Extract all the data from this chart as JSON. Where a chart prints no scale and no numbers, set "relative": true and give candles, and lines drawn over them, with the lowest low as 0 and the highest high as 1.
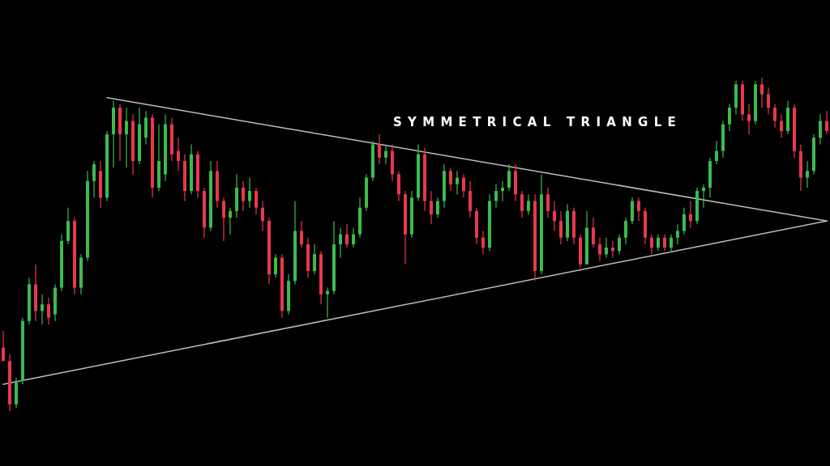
{
  "chart_data": {
    "type": "candlestick",
    "title": "SYMMETRICAL TRIANGLE",
    "relative": true,
    "categories": [
      null,
      null,
      null,
      null,
      null,
      null,
      null,
      null,
      null,
      null,
      null,
      null,
      null,
      null,
      null,
      null,
      null,
      null,
      null,
      null,
      null,
      null,
      null,
      null,
      null,
      null,
      null,
      null,
      null,
      null,
      null,
      null,
      null,
      null,
      null,
      null,
      null,
      null,
      null,
      null,
      null,
      null,
      null,
      null,
      null,
      null,
      null,
      null,
      null,
      null,
      null,
      null,
      null,
      null,
      null,
      null,
      null,
      null,
      null,
      null,
      null,
      null,
      null,
      null,
      null,
      null,
      null,
      null,
      null,
      null,
      null,
      null,
      null,
      null,
      null,
      null,
      null,
      null,
      null,
      null,
      null,
      null,
      null,
      null,
      null,
      null,
      null,
      null,
      null,
      null,
      null,
      null,
      null,
      null,
      null,
      null,
      null,
      null,
      null,
      null,
      null,
      null,
      null,
      null,
      null,
      null,
      null,
      null,
      null,
      null,
      null,
      null,
      null,
      null,
      null,
      null,
      null,
      null,
      null,
      null,
      null,
      null,
      null,
      null,
      null,
      null,
      null,
      null
    ],
    "ohlc": [
      [
        0.19,
        0.24,
        0.15,
        0.15
      ],
      [
        0.15,
        0.17,
        0,
        0.02
      ],
      [
        0.02,
        0.1,
        0.01,
        0.09
      ],
      [
        0.09,
        0.28,
        0.08,
        0.27
      ],
      [
        0.27,
        0.4,
        0.26,
        0.38
      ],
      [
        0.38,
        0.44,
        0.27,
        0.3
      ],
      [
        0.3,
        0.35,
        0.26,
        0.32
      ],
      [
        0.32,
        0.34,
        0.26,
        0.28
      ],
      [
        0.29,
        0.38,
        0.27,
        0.37
      ],
      [
        0.37,
        0.53,
        0.36,
        0.51
      ],
      [
        0.51,
        0.61,
        0.5,
        0.57
      ],
      [
        0.57,
        0.58,
        0.35,
        0.37
      ],
      [
        0.37,
        0.47,
        0.35,
        0.46
      ],
      [
        0.46,
        0.72,
        0.45,
        0.69
      ],
      [
        0.69,
        0.75,
        0.64,
        0.74
      ],
      [
        0.72,
        0.75,
        0.61,
        0.64
      ],
      [
        0.64,
        0.84,
        0.63,
        0.83
      ],
      [
        0.83,
        0.93,
        0.73,
        0.91
      ],
      [
        0.91,
        0.92,
        0.75,
        0.83
      ],
      [
        0.83,
        0.91,
        0.73,
        0.87
      ],
      [
        0.87,
        0.89,
        0.71,
        0.75
      ],
      [
        0.75,
        0.91,
        0.74,
        0.86
      ],
      [
        0.82,
        0.9,
        0.8,
        0.88
      ],
      [
        0.88,
        0.89,
        0.64,
        0.67
      ],
      [
        0.67,
        0.86,
        0.66,
        0.75
      ],
      [
        0.71,
        0.89,
        0.69,
        0.86
      ],
      [
        0.86,
        0.88,
        0.75,
        0.77
      ],
      [
        0.78,
        0.82,
        0.72,
        0.75
      ],
      [
        0.75,
        0.77,
        0.63,
        0.66
      ],
      [
        0.66,
        0.8,
        0.65,
        0.77
      ],
      [
        0.77,
        0.78,
        0.64,
        0.66
      ],
      [
        0.66,
        0.67,
        0.52,
        0.55
      ],
      [
        0.55,
        0.75,
        0.54,
        0.72
      ],
      [
        0.72,
        0.75,
        0.61,
        0.63
      ],
      [
        0.63,
        0.64,
        0.51,
        0.58
      ],
      [
        0.58,
        0.61,
        0.53,
        0.6
      ],
      [
        0.6,
        0.71,
        0.58,
        0.67
      ],
      [
        0.67,
        0.69,
        0.6,
        0.63
      ],
      [
        0.63,
        0.7,
        0.61,
        0.66
      ],
      [
        0.66,
        0.67,
        0.59,
        0.61
      ],
      [
        0.61,
        0.63,
        0.54,
        0.57
      ],
      [
        0.57,
        0.58,
        0.38,
        0.41
      ],
      [
        0.41,
        0.47,
        0.4,
        0.46
      ],
      [
        0.46,
        0.47,
        0.28,
        0.3
      ],
      [
        0.3,
        0.41,
        0.29,
        0.39
      ],
      [
        0.39,
        0.63,
        0.38,
        0.54
      ],
      [
        0.54,
        0.57,
        0.49,
        0.5
      ],
      [
        0.5,
        0.52,
        0.4,
        0.42
      ],
      [
        0.42,
        0.5,
        0.41,
        0.47
      ],
      [
        0.47,
        0.48,
        0.32,
        0.35
      ],
      [
        0.35,
        0.37,
        0.28,
        0.36
      ],
      [
        0.36,
        0.57,
        0.35,
        0.5
      ],
      [
        0.5,
        0.55,
        0.46,
        0.53
      ],
      [
        0.53,
        0.56,
        0.49,
        0.5
      ],
      [
        0.5,
        0.55,
        0.49,
        0.53
      ],
      [
        0.53,
        0.64,
        0.52,
        0.61
      ],
      [
        0.61,
        0.71,
        0.6,
        0.7
      ],
      [
        0.7,
        0.81,
        0.69,
        0.8
      ],
      [
        0.8,
        0.83,
        0.74,
        0.76
      ],
      [
        0.76,
        0.8,
        0.74,
        0.78
      ],
      [
        0.78,
        0.8,
        0.69,
        0.71
      ],
      [
        0.71,
        0.72,
        0.63,
        0.65
      ],
      [
        0.65,
        0.66,
        0.44,
        0.53
      ],
      [
        0.53,
        0.66,
        0.52,
        0.64
      ],
      [
        0.64,
        0.8,
        0.63,
        0.77
      ],
      [
        0.77,
        0.79,
        0.6,
        0.63
      ],
      [
        0.63,
        0.66,
        0.56,
        0.59
      ],
      [
        0.59,
        0.64,
        0.58,
        0.63
      ],
      [
        0.63,
        0.74,
        0.61,
        0.72
      ],
      [
        0.72,
        0.73,
        0.66,
        0.68
      ],
      [
        0.68,
        0.72,
        0.65,
        0.7
      ],
      [
        0.7,
        0.71,
        0.64,
        0.66
      ],
      [
        0.66,
        0.69,
        0.58,
        0.6
      ],
      [
        0.6,
        0.61,
        0.5,
        0.52
      ],
      [
        0.52,
        0.54,
        0.47,
        0.49
      ],
      [
        0.49,
        0.65,
        0.48,
        0.63
      ],
      [
        0.63,
        0.68,
        0.61,
        0.66
      ],
      [
        0.66,
        0.69,
        0.63,
        0.67
      ],
      [
        0.67,
        0.74,
        0.66,
        0.72
      ],
      [
        0.72,
        0.74,
        0.63,
        0.65
      ],
      [
        0.65,
        0.66,
        0.58,
        0.6
      ],
      [
        0.6,
        0.65,
        0.59,
        0.63
      ],
      [
        0.63,
        0.65,
        0.39,
        0.42
      ],
      [
        0.42,
        0.71,
        0.41,
        0.65
      ],
      [
        0.65,
        0.67,
        0.58,
        0.6
      ],
      [
        0.6,
        0.63,
        0.54,
        0.57
      ],
      [
        0.57,
        0.6,
        0.5,
        0.52
      ],
      [
        0.52,
        0.62,
        0.51,
        0.6
      ],
      [
        0.6,
        0.61,
        0.5,
        0.52
      ],
      [
        0.52,
        0.53,
        0.43,
        0.44
      ],
      [
        0.44,
        0.6,
        0.44,
        0.55
      ],
      [
        0.55,
        0.58,
        0.49,
        0.5
      ],
      [
        0.5,
        0.52,
        0.45,
        0.47
      ],
      [
        0.47,
        0.52,
        0.46,
        0.49
      ],
      [
        0.49,
        0.51,
        0.46,
        0.48
      ],
      [
        0.48,
        0.53,
        0.47,
        0.52
      ],
      [
        0.52,
        0.58,
        0.5,
        0.57
      ],
      [
        0.57,
        0.64,
        0.56,
        0.63
      ],
      [
        0.63,
        0.64,
        0.57,
        0.6
      ],
      [
        0.6,
        0.61,
        0.5,
        0.52
      ],
      [
        0.52,
        0.53,
        0.47,
        0.49
      ],
      [
        0.49,
        0.53,
        0.48,
        0.52
      ],
      [
        0.52,
        0.53,
        0.48,
        0.49
      ],
      [
        0.49,
        0.53,
        0.48,
        0.52
      ],
      [
        0.52,
        0.56,
        0.5,
        0.54
      ],
      [
        0.54,
        0.61,
        0.53,
        0.59
      ],
      [
        0.59,
        0.63,
        0.55,
        0.57
      ],
      [
        0.57,
        0.67,
        0.56,
        0.66
      ],
      [
        0.66,
        0.68,
        0.61,
        0.67
      ],
      [
        0.67,
        0.76,
        0.64,
        0.75
      ],
      [
        0.75,
        0.81,
        0.74,
        0.78
      ],
      [
        0.78,
        0.87,
        0.76,
        0.86
      ],
      [
        0.86,
        0.92,
        0.84,
        0.91
      ],
      [
        0.91,
        0.99,
        0.89,
        0.98
      ],
      [
        0.98,
        0.99,
        0.87,
        0.89
      ],
      [
        0.89,
        0.92,
        0.83,
        0.87
      ],
      [
        0.87,
        0.99,
        0.86,
        0.98
      ],
      [
        0.98,
        1,
        0.91,
        0.95
      ],
      [
        0.95,
        0.97,
        0.89,
        0.91
      ],
      [
        0.91,
        0.92,
        0.85,
        0.87
      ],
      [
        0.87,
        0.89,
        0.82,
        0.84
      ],
      [
        0.84,
        0.93,
        0.83,
        0.91
      ],
      [
        0.91,
        0.92,
        0.76,
        0.78
      ],
      [
        0.78,
        0.8,
        0.66,
        0.7
      ],
      [
        0.7,
        0.75,
        0.67,
        0.72
      ],
      [
        0.72,
        0.83,
        0.71,
        0.82
      ],
      [
        0.82,
        0.89,
        0.8,
        0.87
      ],
      [
        0.87,
        0.9,
        0.83,
        0.84
      ]
    ],
    "colors": [
      "#e9384b",
      "#e9384b",
      "#3dba4e",
      "#3dba4e",
      "#3dba4e",
      "#e9384b",
      "#3dba4e",
      "#e9384b",
      "#3dba4e",
      "#3dba4e",
      "#3dba4e",
      "#e9384b",
      "#3dba4e",
      "#3dba4e",
      "#3dba4e",
      "#e9384b",
      "#3dba4e",
      "#3dba4e",
      "#e9384b",
      "#3dba4e",
      "#e9384b",
      "#3dba4e",
      "#3dba4e",
      "#e9384b",
      "#3dba4e",
      "#3dba4e",
      "#e9384b",
      "#e9384b",
      "#e9384b",
      "#3dba4e",
      "#e9384b",
      "#e9384b",
      "#3dba4e",
      "#e9384b",
      "#e9384b",
      "#3dba4e",
      "#3dba4e",
      "#e9384b",
      "#3dba4e",
      "#e9384b",
      "#e9384b",
      "#e9384b",
      "#3dba4e",
      "#e9384b",
      "#3dba4e",
      "#3dba4e",
      "#e9384b",
      "#e9384b",
      "#3dba4e",
      "#e9384b",
      "#3dba4e",
      "#3dba4e",
      "#3dba4e",
      "#e9384b",
      "#3dba4e",
      "#3dba4e",
      "#3dba4e",
      "#3dba4e",
      "#e9384b",
      "#3dba4e",
      "#e9384b",
      "#e9384b",
      "#e9384b",
      "#3dba4e",
      "#3dba4e",
      "#e9384b",
      "#e9384b",
      "#3dba4e",
      "#3dba4e",
      "#e9384b",
      "#3dba4e",
      "#e9384b",
      "#e9384b",
      "#e9384b",
      "#e9384b",
      "#3dba4e",
      "#3dba4e",
      "#3dba4e",
      "#3dba4e",
      "#e9384b",
      "#e9384b",
      "#3dba4e",
      "#e9384b",
      "#3dba4e",
      "#e9384b",
      "#e9384b",
      "#e9384b",
      "#3dba4e",
      "#e9384b",
      "#e9384b",
      "#3dba4e",
      "#e9384b",
      "#e9384b",
      "#3dba4e",
      "#e9384b",
      "#3dba4e",
      "#3dba4e",
      "#3dba4e",
      "#e9384b",
      "#e9384b",
      "#e9384b",
      "#3dba4e",
      "#e9384b",
      "#3dba4e",
      "#3dba4e",
      "#3dba4e",
      "#e9384b",
      "#3dba4e",
      "#3dba4e",
      "#3dba4e",
      "#3dba4e",
      "#3dba4e",
      "#3dba4e",
      "#3dba4e",
      "#e9384b",
      "#e9384b",
      "#3dba4e",
      "#e9384b",
      "#e9384b",
      "#e9384b",
      "#e9384b",
      "#3dba4e",
      "#e9384b",
      "#e9384b",
      "#3dba4e",
      "#3dba4e",
      "#3dba4e",
      "#e9384b"
    ],
    "series": [
      {
        "type": "line",
        "color": "#bdbdbd",
        "values": [
          0.08,
          null,
          null,
          null,
          null,
          null,
          null,
          null,
          null,
          null,
          null,
          null,
          null,
          null,
          null,
          null,
          null,
          null,
          null,
          null,
          null,
          null,
          null,
          null,
          null,
          null,
          null,
          null,
          null,
          null,
          null,
          null,
          null,
          null,
          null,
          null,
          null,
          null,
          null,
          null,
          null,
          null,
          null,
          null,
          null,
          null,
          null,
          null,
          null,
          null,
          null,
          null,
          null,
          null,
          null,
          null,
          null,
          null,
          null,
          null,
          null,
          null,
          null,
          null,
          null,
          null,
          null,
          null,
          null,
          null,
          null,
          null,
          null,
          null,
          null,
          null,
          null,
          null,
          null,
          null,
          null,
          null,
          null,
          null,
          null,
          null,
          null,
          null,
          null,
          null,
          null,
          null,
          null,
          null,
          null,
          null,
          null,
          null,
          null,
          null,
          null,
          null,
          null,
          null,
          null,
          null,
          null,
          null,
          null,
          null,
          null,
          null,
          null,
          null,
          null,
          null,
          null,
          null,
          null,
          null,
          null,
          null,
          null,
          null,
          null,
          null,
          null,
          0.57
        ]
      },
      {
        "type": "line",
        "color": "#bdbdbd",
        "values": [
          null,
          null,
          null,
          null,
          null,
          null,
          null,
          null,
          null,
          null,
          null,
          null,
          null,
          null,
          null,
          null,
          0.94,
          null,
          null,
          null,
          null,
          null,
          null,
          null,
          null,
          null,
          null,
          null,
          null,
          null,
          null,
          null,
          null,
          null,
          null,
          null,
          null,
          null,
          null,
          null,
          null,
          null,
          null,
          null,
          null,
          null,
          null,
          null,
          null,
          null,
          null,
          null,
          null,
          null,
          null,
          null,
          null,
          null,
          null,
          null,
          null,
          null,
          null,
          null,
          null,
          null,
          null,
          null,
          null,
          null,
          null,
          null,
          null,
          null,
          null,
          null,
          null,
          null,
          null,
          null,
          null,
          null,
          null,
          null,
          null,
          null,
          null,
          null,
          null,
          null,
          null,
          null,
          null,
          null,
          null,
          null,
          null,
          null,
          null,
          null,
          null,
          null,
          null,
          null,
          null,
          null,
          null,
          null,
          null,
          null,
          null,
          null,
          null,
          null,
          null,
          null,
          null,
          null,
          null,
          null,
          null,
          null,
          null,
          null,
          null,
          null,
          null,
          0.57
        ]
      }
    ]
  }
}
